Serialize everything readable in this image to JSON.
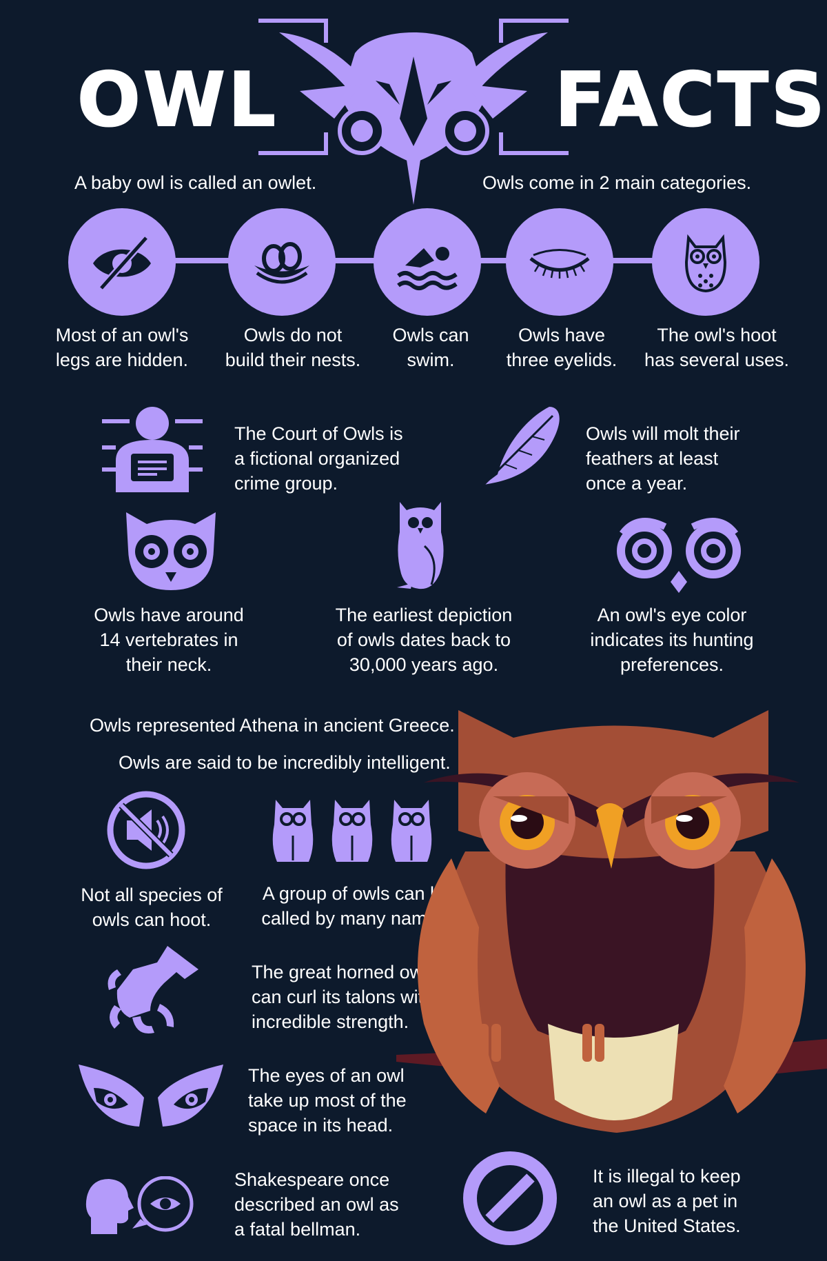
{
  "title": {
    "left": "OWL",
    "right": "FACTS"
  },
  "colors": {
    "background": "#0d1a2c",
    "accent": "#b49bfa",
    "text": "#ffffff",
    "owl_brown": "#a34e36",
    "owl_dark": "#3a1424",
    "owl_eye": "#f0a024"
  },
  "top_facts": {
    "left": "A baby owl is called an owlet.",
    "right": "Owls come in 2 main categories."
  },
  "circles": [
    {
      "icon": "eye-slash-icon",
      "text": "Most of an owl's\nlegs are hidden."
    },
    {
      "icon": "nest-eggs-icon",
      "text": "Owls do not\nbuild their nests."
    },
    {
      "icon": "swimmer-icon",
      "text": "Owls can\nswim."
    },
    {
      "icon": "closed-eye-icon",
      "text": "Owls have\nthree eyelids."
    },
    {
      "icon": "owl-outline-icon",
      "text": "The owl's hoot\nhas several uses."
    }
  ],
  "facts": {
    "court": "The Court of Owls is\na fictional organized\ncrime group.",
    "molt": "Owls will molt their\nfeathers at least\nonce a year.",
    "vertebrates": "Owls have around\n14 vertebrates in\ntheir neck.",
    "depiction": "The earliest depiction\nof owls dates back to\n30,000 years ago.",
    "eye_color": "An owl's eye color\nindicates its hunting\npreferences.",
    "athena": "Owls represented Athena in ancient Greece.",
    "intelligent": "Owls are said to be incredibly intelligent.",
    "hoot": "Not all species of\nowls can hoot.",
    "group": "A group of owls can be\ncalled by many names.",
    "talons": "The great horned owl\ncan curl its talons with\nincredible strength.",
    "eyes_space": "The eyes of an owl\ntake up most of the\nspace in its head.",
    "shakespeare": "Shakespeare once\ndescribed an owl as\na fatal bellman.",
    "illegal": "It is illegal to keep\nan owl as a pet in\nthe United States."
  },
  "icons": {
    "court": "prisoner-mugshot-icon",
    "molt": "feather-icon",
    "vertebrates": "owl-face-icon",
    "depiction": "standing-owl-icon",
    "eye_color": "owl-eyes-icon",
    "hoot": "muted-speaker-icon",
    "group": "three-owls-icon",
    "talons": "talon-icon",
    "eyes_space": "owl-eyes-angry-icon",
    "shakespeare": "head-speech-eye-icon",
    "illegal": "prohibited-icon",
    "header": "owl-silhouette-icon",
    "mascot": "brown-owl-illustration"
  }
}
